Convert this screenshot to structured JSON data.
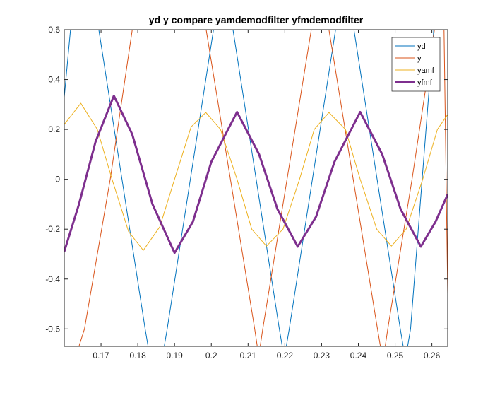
{
  "chart_data": {
    "type": "line",
    "title": "yd y compare yamdemodfilter yfmdemodfilter",
    "xlabel": "",
    "ylabel": "",
    "xlim": [
      0.16,
      0.2643
    ],
    "ylim": [
      -0.67,
      0.6
    ],
    "xticks": [
      0.17,
      0.18,
      0.19,
      0.2,
      0.21,
      0.22,
      0.23,
      0.24,
      0.25,
      0.26
    ],
    "xtick_labels": [
      "0.17",
      "0.18",
      "0.19",
      "0.2",
      "0.21",
      "0.22",
      "0.23",
      "0.24",
      "0.25",
      "0.26"
    ],
    "yticks": [
      0.6,
      0.4,
      0.2,
      0,
      -0.2,
      -0.4,
      -0.6
    ],
    "ytick_labels": [
      "0.6",
      "0.4",
      "0.2",
      "0",
      "-0.2",
      "-0.4",
      "-0.6"
    ],
    "grid": false,
    "legend_position": "top-right",
    "series": [
      {
        "name": "yd",
        "color": "#0072BD",
        "points": [
          [
            0.16,
            0.33
          ],
          [
            0.1617,
            0.6
          ],
          [
            0.1622,
            0.67
          ],
          [
            0.1685,
            0.67
          ],
          [
            0.1694,
            0.6
          ],
          [
            0.1757,
            0.0
          ],
          [
            0.182,
            -0.6
          ],
          [
            0.1828,
            -0.67
          ],
          [
            0.1872,
            -0.67
          ],
          [
            0.188,
            -0.6
          ],
          [
            0.1943,
            0.0
          ],
          [
            0.2006,
            0.6
          ],
          [
            0.2014,
            0.67
          ],
          [
            0.2051,
            0.67
          ],
          [
            0.2059,
            0.6
          ],
          [
            0.2122,
            0.0
          ],
          [
            0.2185,
            -0.6
          ],
          [
            0.2193,
            -0.67
          ],
          [
            0.2204,
            -0.67
          ],
          [
            0.2212,
            -0.6
          ],
          [
            0.2275,
            0.0
          ],
          [
            0.2338,
            0.6
          ],
          [
            0.2346,
            0.67
          ],
          [
            0.238,
            0.67
          ],
          [
            0.2388,
            0.6
          ],
          [
            0.2451,
            0.0
          ],
          [
            0.2514,
            -0.6
          ],
          [
            0.2522,
            -0.67
          ],
          [
            0.2534,
            -0.67
          ],
          [
            0.2542,
            -0.6
          ],
          [
            0.2605,
            0.6
          ],
          [
            0.2613,
            0.67
          ],
          [
            0.2643,
            0.67
          ]
        ]
      },
      {
        "name": "y",
        "color": "#D95319",
        "points": [
          [
            0.164,
            -0.67
          ],
          [
            0.1655,
            -0.6
          ],
          [
            0.1725,
            0.0
          ],
          [
            0.1785,
            0.6
          ],
          [
            0.1793,
            0.67
          ],
          [
            0.198,
            0.67
          ],
          [
            0.1986,
            0.6
          ],
          [
            0.2052,
            0.0
          ],
          [
            0.2118,
            -0.6
          ],
          [
            0.2125,
            -0.67
          ],
          [
            0.2133,
            -0.67
          ],
          [
            0.214,
            -0.6
          ],
          [
            0.2206,
            0.0
          ],
          [
            0.2272,
            0.6
          ],
          [
            0.2279,
            0.67
          ],
          [
            0.2312,
            0.67
          ],
          [
            0.232,
            0.6
          ],
          [
            0.2386,
            0.0
          ],
          [
            0.2452,
            -0.6
          ],
          [
            0.246,
            -0.67
          ],
          [
            0.2473,
            -0.67
          ],
          [
            0.248,
            -0.6
          ],
          [
            0.2546,
            0.0
          ],
          [
            0.2607,
            0.6
          ],
          [
            0.2614,
            0.67
          ],
          [
            0.2625,
            0.67
          ],
          [
            0.2633,
            0.6
          ],
          [
            0.2643,
            -0.46
          ]
        ]
      },
      {
        "name": "yamf",
        "color": "#EDB120",
        "points": [
          [
            0.16,
            0.22
          ],
          [
            0.1645,
            0.305
          ],
          [
            0.169,
            0.2
          ],
          [
            0.173,
            0.0
          ],
          [
            0.1775,
            -0.21
          ],
          [
            0.1815,
            -0.285
          ],
          [
            0.186,
            -0.19
          ],
          [
            0.19,
            0.0
          ],
          [
            0.1945,
            0.21
          ],
          [
            0.1985,
            0.268
          ],
          [
            0.2025,
            0.2
          ],
          [
            0.207,
            0.0
          ],
          [
            0.211,
            -0.2
          ],
          [
            0.215,
            -0.268
          ],
          [
            0.2195,
            -0.2
          ],
          [
            0.224,
            0.0
          ],
          [
            0.228,
            0.2
          ],
          [
            0.232,
            0.268
          ],
          [
            0.2365,
            0.2
          ],
          [
            0.2405,
            0.0
          ],
          [
            0.245,
            -0.2
          ],
          [
            0.249,
            -0.268
          ],
          [
            0.253,
            -0.2
          ],
          [
            0.2575,
            0.0
          ],
          [
            0.2615,
            0.2
          ],
          [
            0.2643,
            0.26
          ]
        ]
      },
      {
        "name": "yfmf",
        "color": "#7E2F8E",
        "points": [
          [
            0.16,
            -0.29
          ],
          [
            0.164,
            -0.1
          ],
          [
            0.1685,
            0.15
          ],
          [
            0.1735,
            0.335
          ],
          [
            0.1785,
            0.18
          ],
          [
            0.184,
            -0.1
          ],
          [
            0.19,
            -0.295
          ],
          [
            0.195,
            -0.17
          ],
          [
            0.2,
            0.07
          ],
          [
            0.207,
            0.27
          ],
          [
            0.213,
            0.1
          ],
          [
            0.218,
            -0.12
          ],
          [
            0.2235,
            -0.27
          ],
          [
            0.2285,
            -0.15
          ],
          [
            0.2335,
            0.07
          ],
          [
            0.2405,
            0.27
          ],
          [
            0.2465,
            0.1
          ],
          [
            0.2515,
            -0.12
          ],
          [
            0.257,
            -0.27
          ],
          [
            0.261,
            -0.17
          ],
          [
            0.2643,
            -0.06
          ]
        ]
      }
    ]
  }
}
